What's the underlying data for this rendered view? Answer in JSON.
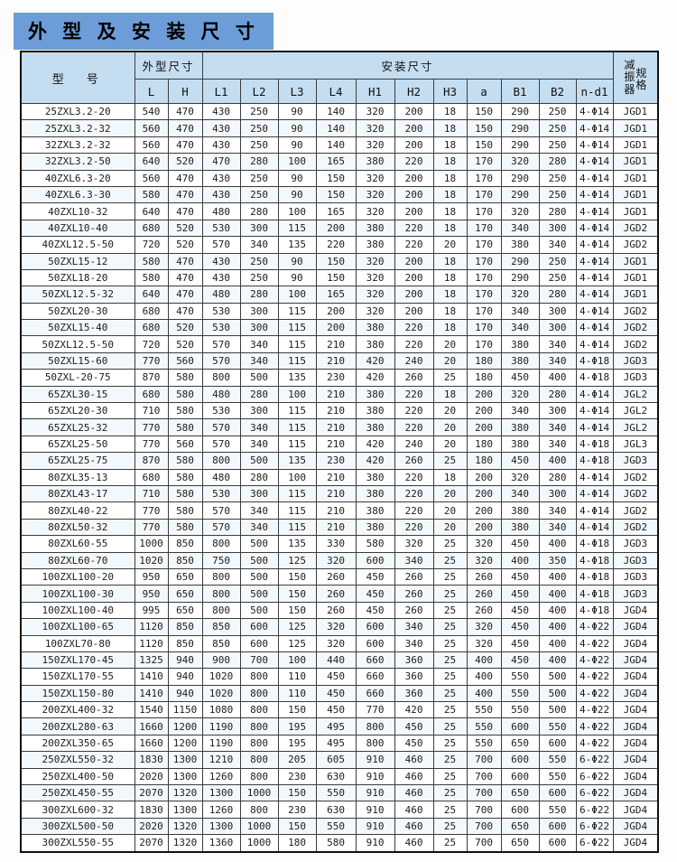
{
  "page_title": "外 型 及 安 装 尺 寸",
  "table": {
    "header": {
      "model": "型　号",
      "outline_dims": "外型尺寸",
      "install_dims": "安装尺寸",
      "damper_left": "减振器",
      "damper_right": "规格",
      "sub_columns": [
        "L",
        "H",
        "L1",
        "L2",
        "L3",
        "L4",
        "H1",
        "H2",
        "H3",
        "a",
        "B1",
        "B2",
        "n-d1"
      ]
    },
    "rows": [
      [
        "25ZXL3.2-20",
        "540",
        "470",
        "430",
        "250",
        "90",
        "140",
        "320",
        "200",
        "18",
        "150",
        "290",
        "250",
        "4-Φ14",
        "JGD1"
      ],
      [
        "25ZXL3.2-32",
        "560",
        "470",
        "430",
        "250",
        "90",
        "140",
        "320",
        "200",
        "18",
        "150",
        "290",
        "250",
        "4-Φ14",
        "JGD1"
      ],
      [
        "32ZXL3.2-32",
        "560",
        "470",
        "430",
        "250",
        "90",
        "140",
        "320",
        "200",
        "18",
        "150",
        "290",
        "250",
        "4-Φ14",
        "JGD1"
      ],
      [
        "32ZXL3.2-50",
        "640",
        "520",
        "470",
        "280",
        "100",
        "165",
        "380",
        "220",
        "18",
        "170",
        "320",
        "280",
        "4-Φ14",
        "JGD1"
      ],
      [
        "40ZXL6.3-20",
        "560",
        "470",
        "430",
        "250",
        "90",
        "150",
        "320",
        "200",
        "18",
        "170",
        "290",
        "250",
        "4-Φ14",
        "JGD1"
      ],
      [
        "40ZXL6.3-30",
        "580",
        "470",
        "430",
        "250",
        "90",
        "150",
        "320",
        "200",
        "18",
        "170",
        "290",
        "250",
        "4-Φ14",
        "JGD1"
      ],
      [
        "40ZXL10-32",
        "640",
        "470",
        "480",
        "280",
        "100",
        "165",
        "320",
        "200",
        "18",
        "170",
        "320",
        "280",
        "4-Φ14",
        "JGD1"
      ],
      [
        "40ZXL10-40",
        "680",
        "520",
        "530",
        "300",
        "115",
        "200",
        "380",
        "220",
        "18",
        "170",
        "340",
        "300",
        "4-Φ14",
        "JGD2"
      ],
      [
        "40ZXL12.5-50",
        "720",
        "520",
        "570",
        "340",
        "135",
        "220",
        "380",
        "220",
        "20",
        "170",
        "380",
        "340",
        "4-Φ14",
        "JGD2"
      ],
      [
        "50ZXL15-12",
        "580",
        "470",
        "430",
        "250",
        "90",
        "150",
        "320",
        "200",
        "18",
        "170",
        "290",
        "250",
        "4-Φ14",
        "JGD1"
      ],
      [
        "50ZXL18-20",
        "580",
        "470",
        "430",
        "250",
        "90",
        "150",
        "320",
        "200",
        "18",
        "170",
        "290",
        "250",
        "4-Φ14",
        "JGD1"
      ],
      [
        "50ZXL12.5-32",
        "640",
        "470",
        "480",
        "280",
        "100",
        "165",
        "320",
        "200",
        "18",
        "170",
        "320",
        "280",
        "4-Φ14",
        "JGD1"
      ],
      [
        "50ZXL20-30",
        "680",
        "470",
        "530",
        "300",
        "115",
        "200",
        "320",
        "200",
        "18",
        "170",
        "340",
        "300",
        "4-Φ14",
        "JGD2"
      ],
      [
        "50ZXL15-40",
        "680",
        "520",
        "530",
        "300",
        "115",
        "200",
        "380",
        "220",
        "18",
        "170",
        "340",
        "300",
        "4-Φ14",
        "JGD2"
      ],
      [
        "50ZXL12.5-50",
        "720",
        "520",
        "570",
        "340",
        "115",
        "210",
        "380",
        "220",
        "20",
        "170",
        "380",
        "340",
        "4-Φ14",
        "JGD2"
      ],
      [
        "50ZXL15-60",
        "770",
        "560",
        "570",
        "340",
        "115",
        "210",
        "420",
        "240",
        "20",
        "180",
        "380",
        "340",
        "4-Φ18",
        "JGD3"
      ],
      [
        "50ZXL-20-75",
        "870",
        "580",
        "800",
        "500",
        "135",
        "230",
        "420",
        "260",
        "25",
        "180",
        "450",
        "400",
        "4-Φ18",
        "JGD3"
      ],
      [
        "65ZXL30-15",
        "680",
        "580",
        "480",
        "280",
        "100",
        "210",
        "380",
        "220",
        "18",
        "200",
        "320",
        "280",
        "4-Φ14",
        "JGL2"
      ],
      [
        "65ZXL20-30",
        "710",
        "580",
        "530",
        "300",
        "115",
        "210",
        "380",
        "220",
        "20",
        "200",
        "340",
        "300",
        "4-Φ14",
        "JGL2"
      ],
      [
        "65ZXL25-32",
        "770",
        "580",
        "570",
        "340",
        "115",
        "210",
        "380",
        "220",
        "20",
        "200",
        "380",
        "340",
        "4-Φ14",
        "JGL2"
      ],
      [
        "65ZXL25-50",
        "770",
        "560",
        "570",
        "340",
        "115",
        "210",
        "420",
        "240",
        "20",
        "180",
        "380",
        "340",
        "4-Φ18",
        "JGL3"
      ],
      [
        "65ZXL25-75",
        "870",
        "580",
        "800",
        "500",
        "135",
        "230",
        "420",
        "260",
        "25",
        "180",
        "450",
        "400",
        "4-Φ18",
        "JGD3"
      ],
      [
        "80ZXL35-13",
        "680",
        "580",
        "480",
        "280",
        "100",
        "210",
        "380",
        "220",
        "18",
        "200",
        "320",
        "280",
        "4-Φ14",
        "JGD2"
      ],
      [
        "80ZXL43-17",
        "710",
        "580",
        "530",
        "300",
        "115",
        "210",
        "380",
        "220",
        "20",
        "200",
        "340",
        "300",
        "4-Φ14",
        "JGD2"
      ],
      [
        "80ZXL40-22",
        "770",
        "580",
        "570",
        "340",
        "115",
        "210",
        "380",
        "220",
        "20",
        "200",
        "380",
        "340",
        "4-Φ14",
        "JGD2"
      ],
      [
        "80ZXL50-32",
        "770",
        "580",
        "570",
        "340",
        "115",
        "210",
        "380",
        "220",
        "20",
        "200",
        "380",
        "340",
        "4-Φ14",
        "JGD2"
      ],
      [
        "80ZXL60-55",
        "1000",
        "850",
        "800",
        "500",
        "135",
        "330",
        "580",
        "320",
        "25",
        "320",
        "450",
        "400",
        "4-Φ18",
        "JGD3"
      ],
      [
        "80ZXL60-70",
        "1020",
        "850",
        "750",
        "500",
        "125",
        "320",
        "600",
        "340",
        "25",
        "320",
        "400",
        "350",
        "4-Φ18",
        "JGD3"
      ],
      [
        "100ZXL100-20",
        "950",
        "650",
        "800",
        "500",
        "150",
        "260",
        "450",
        "260",
        "25",
        "260",
        "450",
        "400",
        "4-Φ18",
        "JGD3"
      ],
      [
        "100ZXL100-30",
        "950",
        "650",
        "800",
        "500",
        "150",
        "260",
        "450",
        "260",
        "25",
        "260",
        "450",
        "400",
        "4-Φ18",
        "JGD3"
      ],
      [
        "100ZXL100-40",
        "995",
        "650",
        "800",
        "500",
        "150",
        "260",
        "450",
        "260",
        "25",
        "260",
        "450",
        "400",
        "4-Φ18",
        "JGD4"
      ],
      [
        "100ZXL100-65",
        "1120",
        "850",
        "850",
        "600",
        "125",
        "320",
        "600",
        "340",
        "25",
        "320",
        "450",
        "400",
        "4-Φ22",
        "JGD4"
      ],
      [
        "100ZXL70-80",
        "1120",
        "850",
        "850",
        "600",
        "125",
        "320",
        "600",
        "340",
        "25",
        "320",
        "450",
        "400",
        "4-Φ22",
        "JGD4"
      ],
      [
        "150ZXL170-45",
        "1325",
        "940",
        "900",
        "700",
        "100",
        "440",
        "660",
        "360",
        "25",
        "400",
        "450",
        "400",
        "4-Φ22",
        "JGD4"
      ],
      [
        "150ZXL170-55",
        "1410",
        "940",
        "1020",
        "800",
        "110",
        "450",
        "660",
        "360",
        "25",
        "400",
        "550",
        "500",
        "4-Φ22",
        "JGD4"
      ],
      [
        "150ZXL150-80",
        "1410",
        "940",
        "1020",
        "800",
        "110",
        "450",
        "660",
        "360",
        "25",
        "400",
        "550",
        "500",
        "4-Φ22",
        "JGD4"
      ],
      [
        "200ZXL400-32",
        "1540",
        "1150",
        "1080",
        "800",
        "150",
        "450",
        "770",
        "420",
        "25",
        "550",
        "550",
        "500",
        "4-Φ22",
        "JGD4"
      ],
      [
        "200ZXL280-63",
        "1660",
        "1200",
        "1190",
        "800",
        "195",
        "495",
        "800",
        "450",
        "25",
        "550",
        "600",
        "550",
        "4-Φ22",
        "JGD4"
      ],
      [
        "200ZXL350-65",
        "1660",
        "1200",
        "1190",
        "800",
        "195",
        "495",
        "800",
        "450",
        "25",
        "550",
        "650",
        "600",
        "4-Φ22",
        "JGD4"
      ],
      [
        "250ZXL550-32",
        "1830",
        "1300",
        "1210",
        "800",
        "205",
        "605",
        "910",
        "460",
        "25",
        "700",
        "600",
        "550",
        "6-Φ22",
        "JGD4"
      ],
      [
        "250ZXL400-50",
        "2020",
        "1300",
        "1260",
        "800",
        "230",
        "630",
        "910",
        "460",
        "25",
        "700",
        "600",
        "550",
        "6-Φ22",
        "JGD4"
      ],
      [
        "250ZXL450-55",
        "2070",
        "1320",
        "1300",
        "1000",
        "150",
        "550",
        "910",
        "460",
        "25",
        "700",
        "650",
        "600",
        "6-Φ22",
        "JGD4"
      ],
      [
        "300ZXL600-32",
        "1830",
        "1300",
        "1260",
        "800",
        "230",
        "630",
        "910",
        "460",
        "25",
        "700",
        "600",
        "550",
        "6-Φ22",
        "JGD4"
      ],
      [
        "300ZXL500-50",
        "2020",
        "1320",
        "1300",
        "1000",
        "150",
        "550",
        "910",
        "460",
        "25",
        "700",
        "650",
        "600",
        "6-Φ22",
        "JGD4"
      ],
      [
        "300ZXL550-55",
        "2070",
        "1320",
        "1360",
        "1000",
        "180",
        "580",
        "910",
        "460",
        "25",
        "700",
        "650",
        "600",
        "6-Φ22",
        "JGD4"
      ]
    ]
  },
  "colors": {
    "banner_blue": "#6d9dd8",
    "header_blue": "#c5ddf0",
    "row_tint": "#f3f8fc",
    "border": "#3c3c3c"
  }
}
